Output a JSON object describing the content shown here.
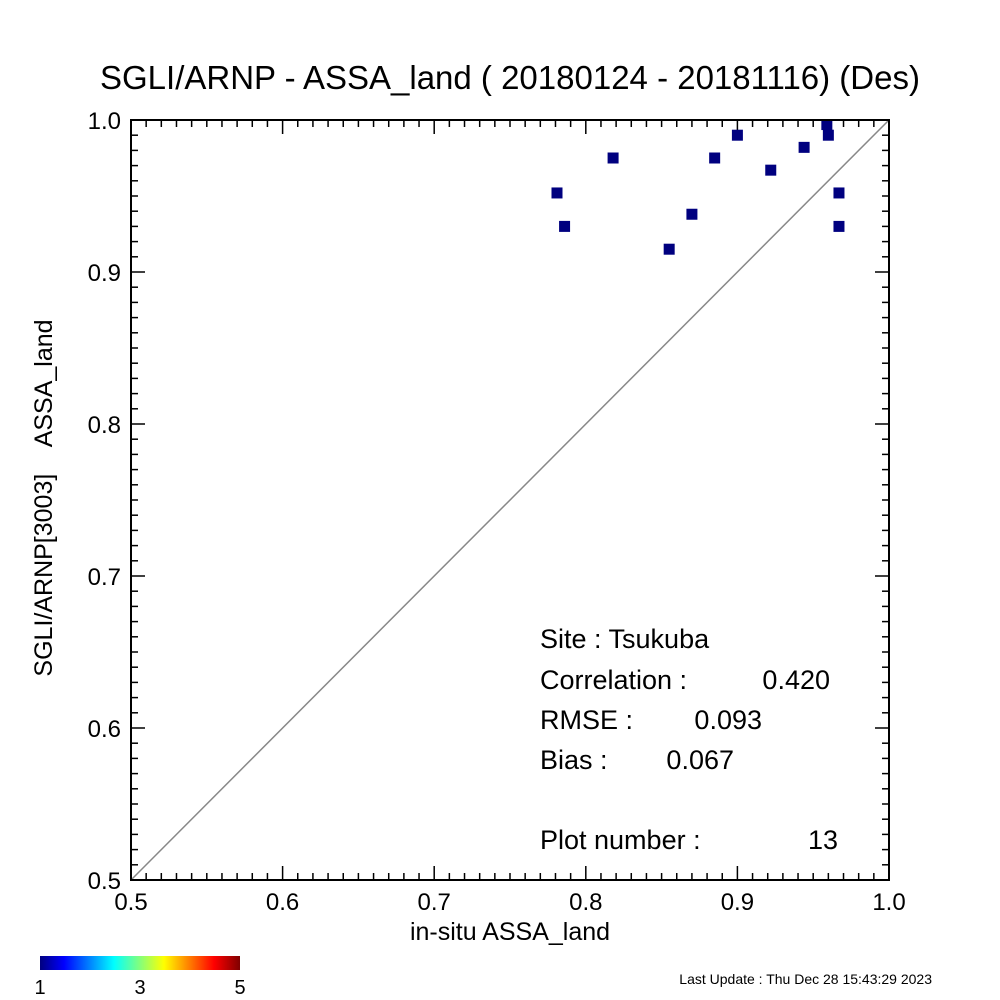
{
  "chart_data": {
    "type": "scatter",
    "title": "SGLI/ARNP - ASSA_land ( 20180124 - 20181116) (Des)",
    "xlabel": "in-situ ASSA_land",
    "ylabel": "SGLI/ARNP[3003]    ASSA_land",
    "xlim": [
      0.5,
      1.0
    ],
    "ylim": [
      0.5,
      1.0
    ],
    "x_ticks": [
      "0.5",
      "0.6",
      "0.7",
      "0.8",
      "0.9",
      "1.0"
    ],
    "y_ticks": [
      "0.5",
      "0.6",
      "0.7",
      "0.8",
      "0.9",
      "1.0"
    ],
    "reference_line": "1:1",
    "marker_color": "#00007f",
    "points": [
      {
        "x": 0.781,
        "y": 0.952
      },
      {
        "x": 0.786,
        "y": 0.93
      },
      {
        "x": 0.818,
        "y": 0.975
      },
      {
        "x": 0.855,
        "y": 0.915
      },
      {
        "x": 0.87,
        "y": 0.938
      },
      {
        "x": 0.885,
        "y": 0.975
      },
      {
        "x": 0.9,
        "y": 0.99
      },
      {
        "x": 0.922,
        "y": 0.967
      },
      {
        "x": 0.944,
        "y": 0.982
      },
      {
        "x": 0.959,
        "y": 0.997
      },
      {
        "x": 0.96,
        "y": 0.99
      },
      {
        "x": 0.967,
        "y": 0.952
      },
      {
        "x": 0.967,
        "y": 0.93
      }
    ],
    "stats": {
      "site_label": "Site : Tsukuba",
      "correlation_label": "Correlation :",
      "correlation_value": "0.420",
      "rmse_label": "RMSE :",
      "rmse_value": "0.093",
      "bias_label": "Bias :",
      "bias_value": "0.067",
      "plot_number_label": "Plot number :",
      "plot_number_value": "13"
    },
    "colorbar": {
      "colors": [
        "#00007f",
        "#0000ff",
        "#00ffff",
        "#ffff00",
        "#ff0000",
        "#7f0000"
      ],
      "tick_labels": [
        "1",
        "3",
        "5"
      ],
      "range": [
        1,
        5
      ]
    }
  },
  "footer": {
    "last_update": "Last Update : Thu Dec 28 15:43:29 2023"
  }
}
